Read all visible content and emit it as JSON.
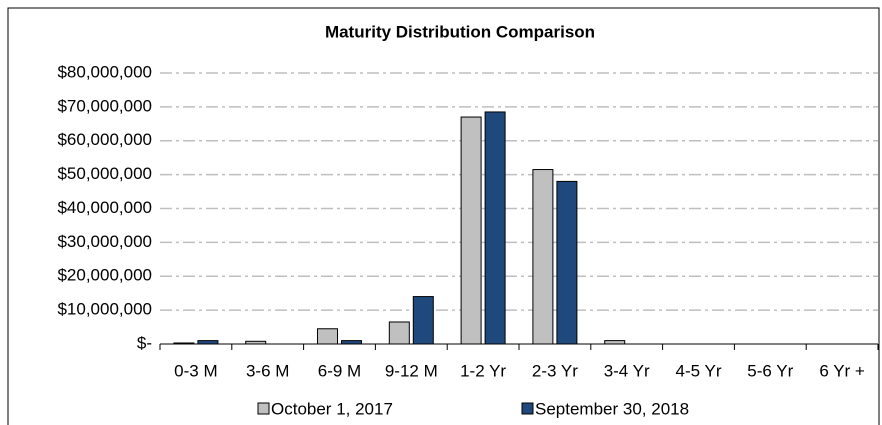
{
  "chart_data": {
    "type": "bar",
    "title": "Maturity Distribution Comparison",
    "categories": [
      "0-3 M",
      "3-6 M",
      "6-9 M",
      "9-12 M",
      "1-2 Yr",
      "2-3 Yr",
      "3-4 Yr",
      "4-5 Yr",
      "5-6 Yr",
      "6 Yr +"
    ],
    "series": [
      {
        "name": "October 1, 2017",
        "color": "#c0c0c0",
        "values": [
          300000,
          800000,
          4500000,
          6500000,
          67000000,
          51500000,
          1000000,
          0,
          0,
          0
        ]
      },
      {
        "name": "September 30, 2018",
        "color": "#1f497d",
        "values": [
          1000000,
          0,
          1000000,
          14000000,
          68500000,
          48000000,
          0,
          0,
          0,
          0
        ]
      }
    ],
    "ylim": [
      0,
      80000000
    ],
    "yticks": [
      {
        "value": 0,
        "label": "$-"
      },
      {
        "value": 10000000,
        "label": "$10,000,000"
      },
      {
        "value": 20000000,
        "label": "$20,000,000"
      },
      {
        "value": 30000000,
        "label": "$30,000,000"
      },
      {
        "value": 40000000,
        "label": "$40,000,000"
      },
      {
        "value": 50000000,
        "label": "$50,000,000"
      },
      {
        "value": 60000000,
        "label": "$60,000,000"
      },
      {
        "value": 70000000,
        "label": "$70,000,000"
      },
      {
        "value": 80000000,
        "label": "$80,000,000"
      }
    ],
    "grid": true,
    "legend": "bottom"
  }
}
